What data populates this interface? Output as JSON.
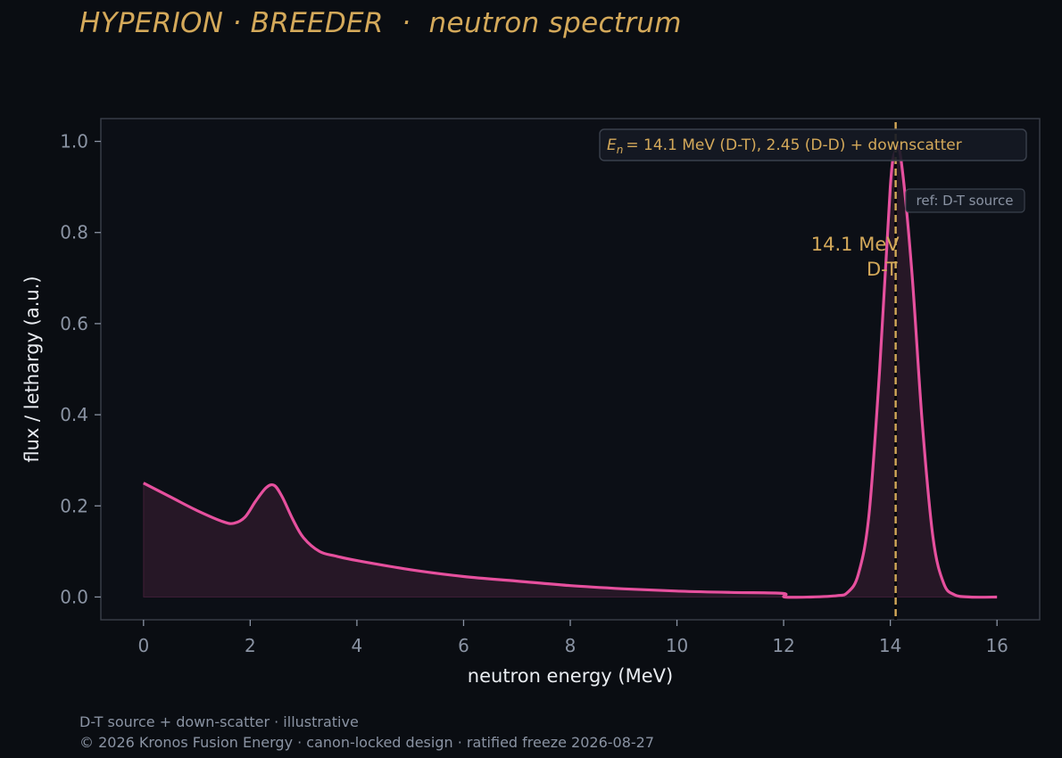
{
  "title": "HYPERION · BREEDER  ·  neutron spectrum",
  "footer": {
    "line1": "D-T source + down-scatter · illustrative",
    "line2": "© 2026 Kronos Fusion Energy · canon-locked design · ratified freeze 2026-08-27"
  },
  "colors": {
    "background": "#0a0d12",
    "plot_background": "#0c0f16",
    "series": "#e6509e",
    "accent": "#d4a95a",
    "muted": "#8a93a3"
  },
  "chart_data": {
    "type": "area",
    "xlabel": "neutron energy (MeV)",
    "ylabel": "flux / lethargy (a.u.)",
    "xlim": [
      -0.8,
      16.8
    ],
    "ylim": [
      -0.05,
      1.05
    ],
    "x_ticks": [
      0,
      2,
      4,
      6,
      8,
      10,
      12,
      14,
      16
    ],
    "y_ticks": [
      0.0,
      0.2,
      0.4,
      0.6,
      0.8,
      1.0
    ],
    "y_tick_labels": [
      "0.0",
      "0.2",
      "0.4",
      "0.6",
      "0.8",
      "1.0"
    ],
    "grid": false,
    "legend": "top-right",
    "legend_text": "= 14.1 MeV (D-T), 2.45 (D-D) + downscatter",
    "legend_symbol": "E",
    "legend_subscript": "n",
    "series": [
      {
        "x": [
          0,
          0.5,
          1.0,
          1.5,
          1.7,
          1.9,
          2.1,
          2.3,
          2.45,
          2.6,
          2.8,
          3.0,
          3.3,
          3.6,
          4,
          5,
          6,
          7,
          8,
          9,
          10,
          11,
          11.98,
          12.02,
          12.5,
          13.0,
          13.2,
          13.4,
          13.6,
          13.8,
          14.0,
          14.1,
          14.2,
          14.4,
          14.6,
          14.8,
          15.0,
          15.2,
          15.5,
          16.0
        ],
        "y": [
          0.25,
          0.22,
          0.19,
          0.165,
          0.162,
          0.175,
          0.21,
          0.24,
          0.245,
          0.22,
          0.17,
          0.13,
          0.1,
          0.09,
          0.08,
          0.06,
          0.045,
          0.035,
          0.025,
          0.018,
          0.013,
          0.01,
          0.008,
          0.0,
          0.0,
          0.003,
          0.01,
          0.05,
          0.18,
          0.5,
          0.9,
          0.98,
          0.96,
          0.72,
          0.38,
          0.13,
          0.03,
          0.005,
          0.0,
          0.0
        ]
      }
    ],
    "reference_line": {
      "x": 14.1,
      "label": "ref: D-T source"
    },
    "annotation": {
      "line1": "14.1 MeV",
      "line2": "D-T",
      "x": 14.1,
      "y": 0.76
    }
  }
}
